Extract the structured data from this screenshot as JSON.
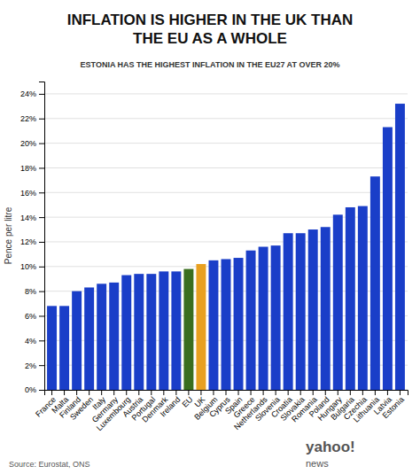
{
  "chart_data": {
    "type": "bar",
    "title": "INFLATION IS HIGHER IN THE UK THAN\nTHE EU AS A WHOLE",
    "subtitle": "ESTONIA HAS THE HIGHEST INFLATION IN THE EU27 AT OVER 20%",
    "ylabel": "Pence per litre",
    "categories": [
      "France",
      "Malta",
      "Finland",
      "Sweden",
      "Italy",
      "Germany",
      "Luxembourg",
      "Austria",
      "Portugal",
      "Denmark",
      "Ireland",
      "EU",
      "UK",
      "Belgium",
      "Cyprus",
      "Spain",
      "Greece",
      "Netherlands",
      "Slovenia",
      "Croatia",
      "Slovakia",
      "Romania",
      "Poland",
      "Hungary",
      "Bulgaria",
      "Czechia",
      "Lithuania",
      "Latvia",
      "Estonia"
    ],
    "values": [
      6.8,
      6.8,
      8.0,
      8.3,
      8.6,
      8.7,
      9.3,
      9.4,
      9.4,
      9.6,
      9.6,
      9.8,
      10.2,
      10.5,
      10.6,
      10.7,
      11.3,
      11.6,
      11.7,
      12.7,
      12.7,
      13.0,
      13.2,
      14.2,
      14.8,
      14.9,
      17.3,
      21.3,
      23.2
    ],
    "colors": [
      "#1a3ec8",
      "#1a3ec8",
      "#1a3ec8",
      "#1a3ec8",
      "#1a3ec8",
      "#1a3ec8",
      "#1a3ec8",
      "#1a3ec8",
      "#1a3ec8",
      "#1a3ec8",
      "#1a3ec8",
      "#3a6e1f",
      "#e8a020",
      "#1a3ec8",
      "#1a3ec8",
      "#1a3ec8",
      "#1a3ec8",
      "#1a3ec8",
      "#1a3ec8",
      "#1a3ec8",
      "#1a3ec8",
      "#1a3ec8",
      "#1a3ec8",
      "#1a3ec8",
      "#1a3ec8",
      "#1a3ec8",
      "#1a3ec8",
      "#1a3ec8",
      "#1a3ec8"
    ],
    "ylim": [
      0,
      25
    ],
    "yticks": [
      {
        "value": 0,
        "label": "0%"
      },
      {
        "value": 2,
        "label": "2%"
      },
      {
        "value": 4,
        "label": "4%"
      },
      {
        "value": 6,
        "label": "6%"
      },
      {
        "value": 8,
        "label": "8%"
      },
      {
        "value": 10,
        "label": "10%"
      },
      {
        "value": 12,
        "label": "12%"
      },
      {
        "value": 14,
        "label": "14%"
      },
      {
        "value": 16,
        "label": "16%"
      },
      {
        "value": 18,
        "label": "18%"
      },
      {
        "value": 20,
        "label": "20%"
      },
      {
        "value": 22,
        "label": "22%"
      },
      {
        "value": 24,
        "label": "24%"
      }
    ],
    "grid": true,
    "annotations": [
      "Source: Eurostat, ONS",
      "yahoo!",
      "news"
    ]
  }
}
